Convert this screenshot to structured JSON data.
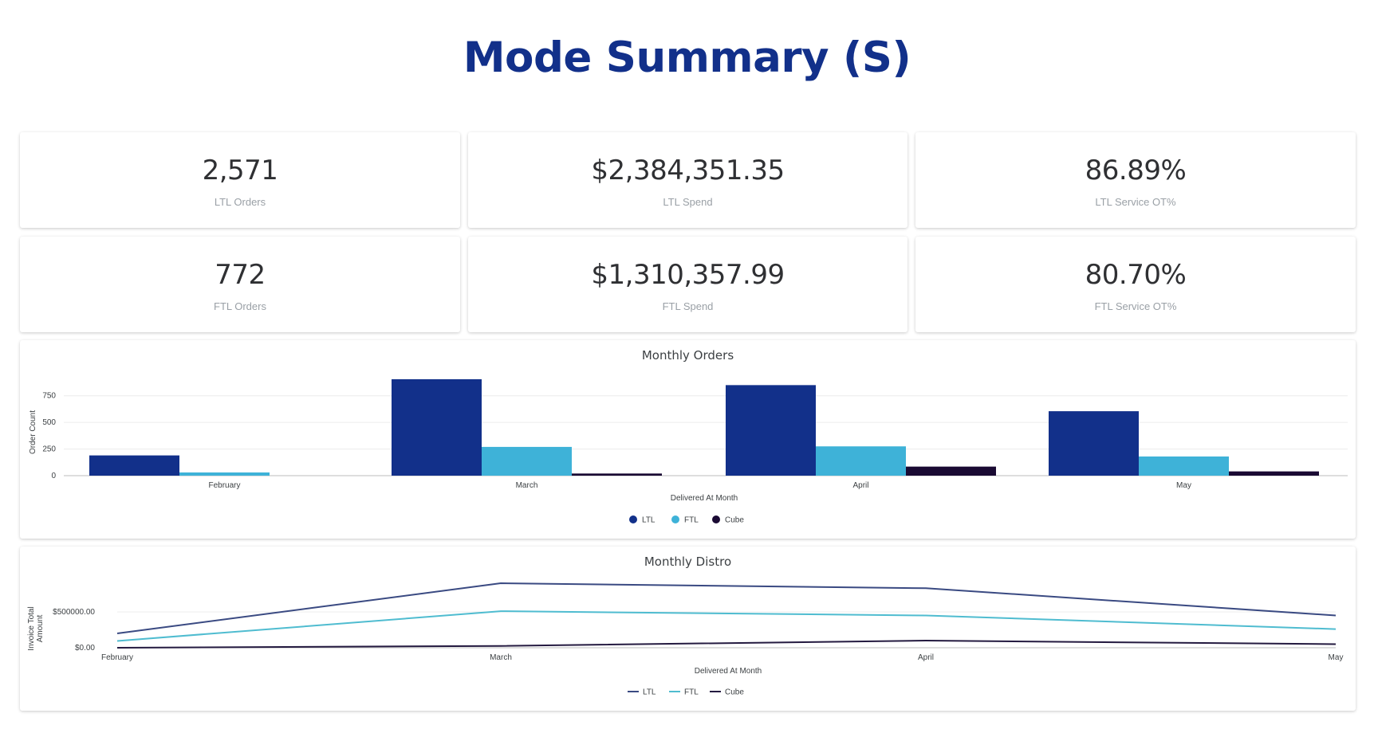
{
  "header": {
    "title": "Mode Summary (S)"
  },
  "kpis": [
    {
      "value": "2,571",
      "label": "LTL Orders"
    },
    {
      "value": "$2,384,351.35",
      "label": "LTL Spend"
    },
    {
      "value": "86.89%",
      "label": "LTL Service OT%"
    },
    {
      "value": "772",
      "label": "FTL Orders"
    },
    {
      "value": "$1,310,357.99",
      "label": "FTL Spend"
    },
    {
      "value": "80.70%",
      "label": "FTL Service OT%"
    }
  ],
  "colors": {
    "title": "#12308a",
    "LTL": "#12308a",
    "FTL": "#3eb2d8",
    "Cube": "#1a0a33",
    "LTL_line": "#3a4a82",
    "FTL_line": "#4fbcd0",
    "Cube_line": "#241a40"
  },
  "chart_data": [
    {
      "type": "bar",
      "title": "Monthly Orders",
      "xlabel": "Delivered At Month",
      "ylabel": "Order Count",
      "categories": [
        "February",
        "March",
        "April",
        "May"
      ],
      "series": [
        {
          "name": "LTL",
          "values": [
            190,
            905,
            850,
            605
          ]
        },
        {
          "name": "FTL",
          "values": [
            30,
            270,
            275,
            180
          ]
        },
        {
          "name": "Cube",
          "values": [
            0,
            20,
            85,
            40
          ]
        }
      ],
      "yticks": [
        0,
        250,
        500,
        750
      ],
      "ytick_labels": [
        "0",
        "250",
        "500",
        "750"
      ],
      "ylim": [
        0,
        920
      ],
      "grid": true,
      "legend": "bottom"
    },
    {
      "type": "line",
      "title": "Monthly Distro",
      "xlabel": "Delivered At Month",
      "ylabel": "Invoice Total Amount",
      "categories": [
        "February",
        "March",
        "April",
        "May"
      ],
      "series": [
        {
          "name": "LTL",
          "values": [
            200000,
            900000,
            830000,
            450000
          ]
        },
        {
          "name": "FTL",
          "values": [
            95000,
            510000,
            450000,
            260000
          ]
        },
        {
          "name": "Cube",
          "values": [
            0,
            25000,
            100000,
            50000
          ]
        }
      ],
      "yticks": [
        0,
        500000
      ],
      "ytick_labels": [
        "$0.00",
        "$500000.00"
      ],
      "ylim": [
        0,
        1000000
      ],
      "grid": true,
      "legend": "bottom"
    }
  ]
}
